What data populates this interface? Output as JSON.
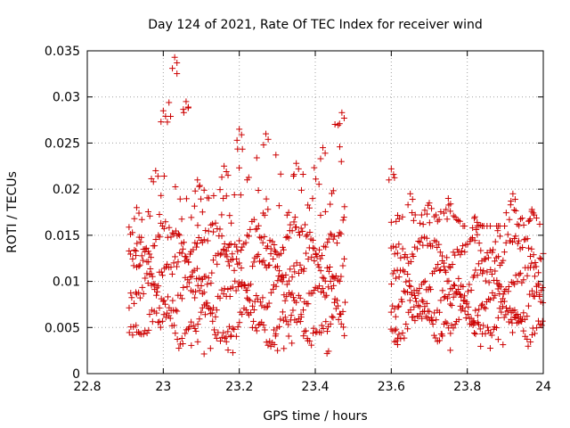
{
  "chart_data": {
    "type": "scatter",
    "title": "Day 124 of 2021, Rate Of TEC Index for receiver wind",
    "xlabel": "GPS time / hours",
    "ylabel": "ROTI / TECUs",
    "xlim": [
      22.8,
      24.0
    ],
    "ylim": [
      0,
      0.035
    ],
    "xticks": [
      22.8,
      23.0,
      23.2,
      23.4,
      23.6,
      23.8,
      24.0
    ],
    "xtick_labels": [
      "22.8",
      "23",
      "23.2",
      "23.4",
      "23.6",
      "23.8",
      "24"
    ],
    "yticks": [
      0,
      0.005,
      0.01,
      0.015,
      0.02,
      0.025,
      0.03,
      0.035
    ],
    "ytick_labels": [
      "0",
      "0.005",
      "0.01",
      "0.015",
      "0.02",
      "0.025",
      "0.03",
      "0.035"
    ],
    "grid": true,
    "marker": "+",
    "color": "#cc0000",
    "series": [
      {
        "name": "ROTI",
        "segments": [
          {
            "x_range": [
              22.91,
              23.48
            ],
            "baseline_tracks": [
              0.0052,
              0.0085,
              0.0115,
              0.0145
            ],
            "envelope_peaks": [
              {
                "x": 22.93,
                "y": 0.018
              },
              {
                "x": 22.98,
                "y": 0.022
              },
              {
                "x": 23.0,
                "y": 0.0285
              },
              {
                "x": 23.03,
                "y": 0.0343
              },
              {
                "x": 23.06,
                "y": 0.0295
              },
              {
                "x": 23.09,
                "y": 0.021
              },
              {
                "x": 23.16,
                "y": 0.0225
              },
              {
                "x": 23.2,
                "y": 0.0265
              },
              {
                "x": 23.27,
                "y": 0.026
              },
              {
                "x": 23.35,
                "y": 0.0228
              },
              {
                "x": 23.42,
                "y": 0.0245
              },
              {
                "x": 23.47,
                "y": 0.0283
              }
            ],
            "min_value": 0.0018
          },
          {
            "x_range": [
              23.6,
              24.0
            ],
            "baseline_tracks": [
              0.0055,
              0.0075,
              0.01,
              0.0135
            ],
            "envelope_peaks": [
              {
                "x": 23.6,
                "y": 0.0222
              },
              {
                "x": 23.65,
                "y": 0.0195
              },
              {
                "x": 23.7,
                "y": 0.0185
              },
              {
                "x": 23.75,
                "y": 0.019
              },
              {
                "x": 23.82,
                "y": 0.017
              },
              {
                "x": 23.88,
                "y": 0.0155
              },
              {
                "x": 23.92,
                "y": 0.0195
              },
              {
                "x": 23.97,
                "y": 0.0178
              }
            ],
            "min_value": 0.0024
          }
        ]
      }
    ]
  }
}
